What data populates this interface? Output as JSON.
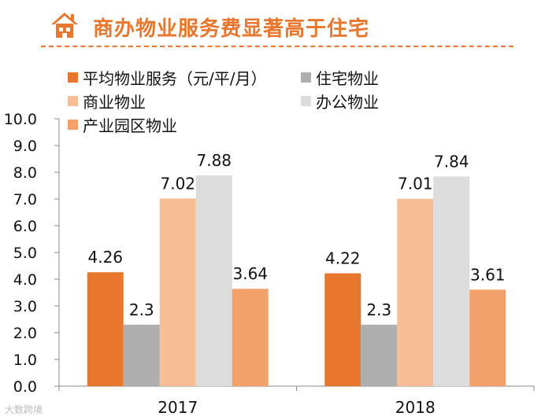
{
  "title": "商办物业服务费显著高于住宅",
  "watermark": "大数跨境",
  "colors": {
    "accent": "#E8762C",
    "series": [
      "#E8762C",
      "#AEAEAE",
      "#F7BE96",
      "#DCDCDC",
      "#F3A06A"
    ]
  },
  "chart_data": {
    "type": "bar",
    "title": "商办物业服务费显著高于住宅",
    "categories": [
      "2017",
      "2018"
    ],
    "series": [
      {
        "name": "平均物业服务（元/平/月）",
        "values": [
          4.26,
          4.22
        ],
        "labels": [
          "4.26",
          "4.22"
        ]
      },
      {
        "name": "住宅物业",
        "values": [
          2.3,
          2.3
        ],
        "labels": [
          "2.3",
          "2.3"
        ]
      },
      {
        "name": "商业物业",
        "values": [
          7.02,
          7.01
        ],
        "labels": [
          "7.02",
          "7.01"
        ]
      },
      {
        "name": "办公物业",
        "values": [
          7.88,
          7.84
        ],
        "labels": [
          "7.88",
          "7.84"
        ]
      },
      {
        "name": "产业园区物业",
        "values": [
          3.64,
          3.61
        ],
        "labels": [
          "3.64",
          "3.61"
        ]
      }
    ],
    "yticks": [
      "0.0",
      "1.0",
      "2.0",
      "3.0",
      "4.0",
      "5.0",
      "6.0",
      "7.0",
      "8.0",
      "9.0",
      "10.0"
    ],
    "ylim": [
      0,
      10
    ],
    "xlabel": "",
    "ylabel": "",
    "legend": "top"
  }
}
